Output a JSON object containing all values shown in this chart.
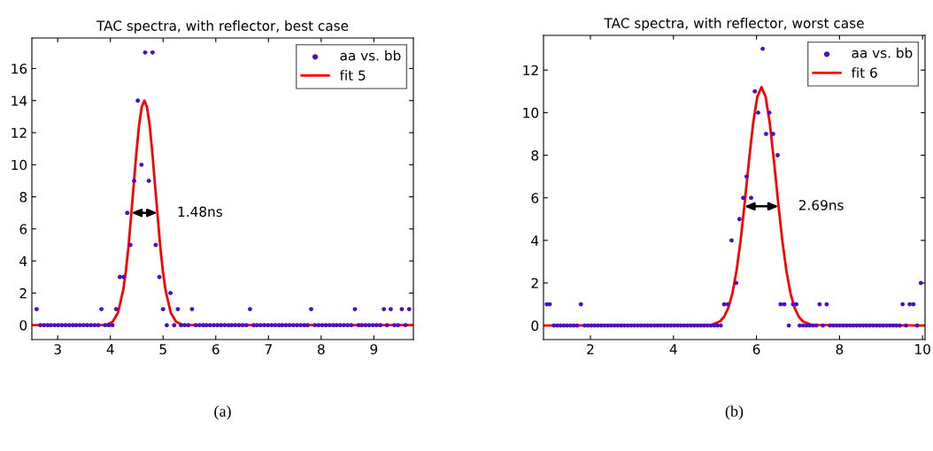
{
  "chart_data": [
    {
      "type": "scatter",
      "title": "TAC spectra, with reflector, best case",
      "xlim": [
        2.51,
        9.75
      ],
      "xticks": [
        3,
        4,
        5,
        6,
        7,
        8,
        9
      ],
      "ylim": [
        -0.9,
        17.9
      ],
      "yticks": [
        0,
        2,
        4,
        6,
        8,
        10,
        12,
        14,
        16
      ],
      "grid": false,
      "legend": "top right",
      "series": [
        {
          "name": "aa vs. bb",
          "marker": "circle",
          "color": "#4b0fbf",
          "x": [
            2.6,
            2.67,
            2.74,
            2.81,
            2.87,
            2.94,
            3.01,
            3.08,
            3.15,
            3.22,
            3.29,
            3.35,
            3.42,
            3.49,
            3.56,
            3.63,
            3.7,
            3.77,
            3.83,
            3.9,
            3.97,
            4.04,
            4.11,
            4.18,
            4.25,
            4.32,
            4.38,
            4.45,
            4.52,
            4.59,
            4.66,
            4.73,
            4.8,
            4.86,
            4.93,
            5.0,
            5.07,
            5.14,
            5.21,
            5.28,
            5.34,
            5.41,
            5.48,
            5.55,
            5.62,
            5.69,
            5.76,
            5.82,
            5.89,
            5.96,
            6.03,
            6.1,
            6.17,
            6.24,
            6.3,
            6.37,
            6.44,
            6.51,
            6.58,
            6.65,
            6.72,
            6.78,
            6.85,
            6.92,
            6.99,
            7.06,
            7.13,
            7.2,
            7.26,
            7.33,
            7.4,
            7.47,
            7.54,
            7.61,
            7.68,
            7.74,
            7.81,
            7.88,
            7.95,
            8.02,
            8.09,
            8.16,
            8.23,
            8.29,
            8.36,
            8.43,
            8.5,
            8.57,
            8.64,
            8.71,
            8.77,
            8.84,
            8.91,
            8.98,
            9.05,
            9.12,
            9.19,
            9.25,
            9.32,
            9.39,
            9.46,
            9.53,
            9.6,
            9.67
          ],
          "values": [
            1,
            0,
            0,
            0,
            0,
            0,
            0,
            0,
            0,
            0,
            0,
            0,
            0,
            0,
            0,
            0,
            0,
            0,
            1,
            0,
            0,
            0,
            1,
            3,
            3,
            7,
            5,
            9,
            14,
            10,
            17,
            9,
            17,
            5,
            3,
            1,
            0,
            2,
            0,
            1,
            0,
            0,
            0,
            1,
            0,
            0,
            0,
            0,
            0,
            0,
            0,
            0,
            0,
            0,
            0,
            0,
            0,
            0,
            0,
            1,
            0,
            0,
            0,
            0,
            0,
            0,
            0,
            0,
            0,
            0,
            0,
            0,
            0,
            0,
            0,
            0,
            1,
            0,
            0,
            0,
            0,
            0,
            0,
            0,
            0,
            0,
            0,
            0,
            1,
            0,
            0,
            0,
            0,
            0,
            0,
            0,
            1,
            0,
            1,
            0,
            0,
            1,
            0,
            1
          ]
        },
        {
          "name": "fit 5",
          "type": "line",
          "color": "#ff0000",
          "x": [
            2.51,
            3.85,
            3.945,
            4.045,
            4.145,
            4.245,
            4.295,
            4.345,
            4.445,
            4.495,
            4.545,
            4.595,
            4.645,
            4.695,
            4.745,
            4.795,
            4.845,
            4.945,
            4.995,
            5.045,
            5.145,
            5.245,
            5.345,
            5.45,
            9.75
          ],
          "values": [
            0,
            0,
            0.05,
            0.22,
            0.78,
            2.21,
            3.4,
            4.95,
            8.82,
            10.79,
            12.47,
            13.6,
            14,
            13.6,
            12.47,
            10.79,
            8.82,
            4.95,
            3.4,
            2.21,
            0.78,
            0.22,
            0.05,
            0,
            0
          ]
        }
      ],
      "annotations": [
        "1.48ns",
        "(a)"
      ]
    },
    {
      "type": "scatter",
      "title": "TAC spectra, with reflector, worst case",
      "xlim": [
        0.87,
        10.06
      ],
      "xticks": [
        2,
        4,
        6,
        8,
        10
      ],
      "ylim": [
        -0.66,
        13.63
      ],
      "yticks": [
        0,
        2,
        4,
        6,
        8,
        10,
        12
      ],
      "grid": false,
      "legend": "top right",
      "series": [
        {
          "name": "aa vs. bb",
          "marker": "circle",
          "color": "#4b0fbf",
          "x": [
            0.95,
            1.02,
            1.12,
            1.2,
            1.28,
            1.36,
            1.44,
            1.52,
            1.6,
            1.68,
            1.77,
            1.86,
            1.94,
            2.02,
            2.1,
            2.18,
            2.26,
            2.34,
            2.42,
            2.5,
            2.58,
            2.66,
            2.74,
            2.82,
            2.9,
            2.98,
            3.06,
            3.14,
            3.22,
            3.3,
            3.38,
            3.46,
            3.54,
            3.62,
            3.7,
            3.78,
            3.86,
            3.94,
            4.02,
            4.1,
            4.18,
            4.26,
            4.34,
            4.42,
            4.5,
            4.58,
            4.66,
            4.74,
            4.82,
            4.9,
            4.98,
            5.06,
            5.14,
            5.22,
            5.31,
            5.4,
            5.51,
            5.59,
            5.68,
            5.76,
            5.87,
            5.96,
            6.04,
            6.15,
            6.23,
            6.31,
            6.4,
            6.51,
            6.58,
            6.67,
            6.78,
            6.88,
            6.96,
            7.04,
            7.12,
            7.2,
            7.28,
            7.36,
            7.44,
            7.52,
            7.6,
            7.69,
            7.77,
            7.85,
            7.93,
            8.01,
            8.09,
            8.17,
            8.25,
            8.33,
            8.41,
            8.49,
            8.57,
            8.65,
            8.73,
            8.81,
            8.89,
            8.97,
            9.05,
            9.13,
            9.21,
            9.29,
            9.37,
            9.45,
            9.52,
            9.6,
            9.69,
            9.78,
            9.87,
            9.96
          ],
          "values": [
            1,
            1,
            0,
            0,
            0,
            0,
            0,
            0,
            0,
            0,
            1,
            0,
            0,
            0,
            0,
            0,
            0,
            0,
            0,
            0,
            0,
            0,
            0,
            0,
            0,
            0,
            0,
            0,
            0,
            0,
            0,
            0,
            0,
            0,
            0,
            0,
            0,
            0,
            0,
            0,
            0,
            0,
            0,
            0,
            0,
            0,
            0,
            0,
            0,
            0,
            0,
            0,
            0,
            1,
            1,
            4,
            2,
            5,
            6,
            7,
            6,
            11,
            10,
            13,
            9,
            10,
            9,
            8,
            1,
            1,
            0,
            1,
            1,
            0,
            0,
            0,
            0,
            0,
            0,
            1,
            0,
            1,
            0,
            0,
            0,
            0,
            0,
            0,
            0,
            0,
            0,
            0,
            0,
            0,
            0,
            0,
            0,
            0,
            0,
            0,
            0,
            0,
            0,
            0,
            1,
            0,
            1,
            1,
            0,
            2
          ]
        },
        {
          "name": "fit 6",
          "type": "line",
          "color": "#ff0000",
          "x": [
            0.87,
            4.92,
            5.12,
            5.22,
            5.32,
            5.42,
            5.52,
            5.62,
            5.72,
            5.82,
            5.92,
            6.02,
            6.12,
            6.22,
            6.32,
            6.42,
            6.52,
            6.62,
            6.72,
            6.82,
            6.92,
            7.02,
            7.12,
            7.32,
            10.06
          ],
          "values": [
            0,
            0.03,
            0.19,
            0.41,
            0.82,
            1.51,
            2.58,
            4.03,
            5.83,
            7.76,
            9.51,
            10.75,
            11.2,
            10.75,
            9.51,
            7.76,
            5.83,
            4.03,
            2.58,
            1.51,
            0.82,
            0.41,
            0.19,
            0.03,
            0
          ]
        }
      ],
      "annotations": [
        "2.69ns",
        "(b)"
      ]
    }
  ]
}
